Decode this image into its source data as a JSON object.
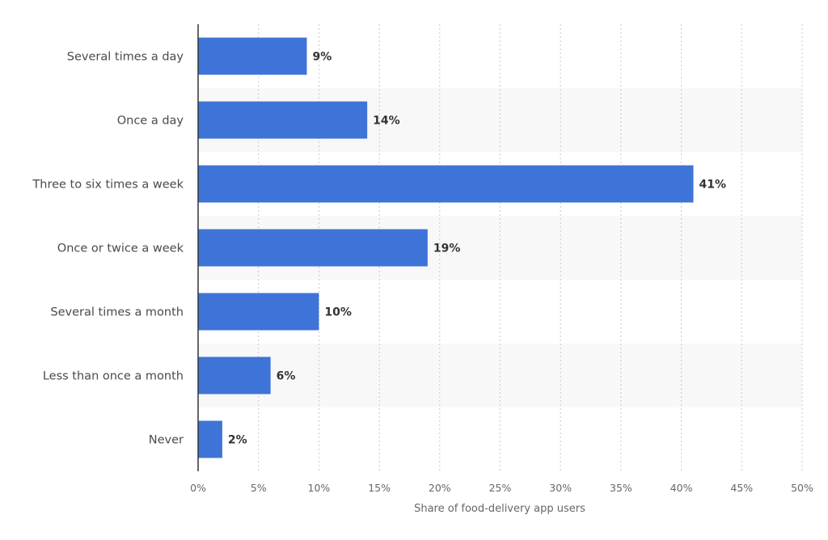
{
  "chart_data": {
    "type": "bar",
    "orientation": "horizontal",
    "categories": [
      "Several times a day",
      "Once a day",
      "Three to six times a week",
      "Once or twice a week",
      "Several times a month",
      "Less than once a month",
      "Never"
    ],
    "values": [
      9,
      14,
      41,
      19,
      10,
      6,
      2
    ],
    "value_labels": [
      "9%",
      "14%",
      "41%",
      "19%",
      "10%",
      "6%",
      "2%"
    ],
    "xlabel": "Share of food-delivery app users",
    "xlim": [
      0,
      50
    ],
    "x_ticks": [
      0,
      5,
      10,
      15,
      20,
      25,
      30,
      35,
      40,
      45,
      50
    ],
    "x_tick_labels": [
      "0%",
      "5%",
      "10%",
      "15%",
      "20%",
      "25%",
      "30%",
      "35%",
      "40%",
      "45%",
      "50%"
    ],
    "grid": true,
    "bar_color": "#3e74d8",
    "band_color": "#f8f8f8"
  }
}
